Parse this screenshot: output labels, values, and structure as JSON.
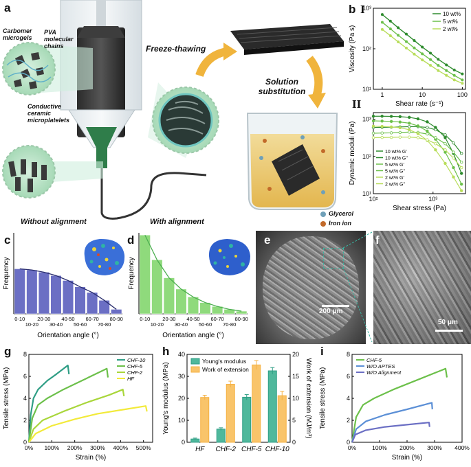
{
  "figure": {
    "panel_labels": {
      "a": "a",
      "b": "b",
      "b1": "I",
      "b2": "II",
      "c": "c",
      "d": "d",
      "e": "e",
      "f": "f",
      "g": "g",
      "h": "h",
      "i": "i"
    },
    "schematic": {
      "carbomer": "Carbomer microgels",
      "pva": "PVA molecular chains",
      "ceramic": "Conductive ceramic microplatelets",
      "freeze": "Freeze-thawing",
      "solution_line1": "Solution",
      "solution_line2": "substitution",
      "glycerol": "Glycerol",
      "iron": "Iron ion"
    },
    "titles": {
      "c": "Without alignment",
      "d": "With alignment"
    },
    "sem": {
      "e_scale": "200 μm",
      "f_scale": "50 μm"
    },
    "colors": {
      "dark_green": "#2e8b2e",
      "mid_green": "#6cc04a",
      "light_green": "#b8dd5a",
      "purple": "#6b6fc4",
      "teal": "#2f9e85",
      "orange": "#f5b142",
      "yellow": "#f2ea3a",
      "blue": "#5b8fd6"
    }
  },
  "chart_data": [
    {
      "id": "b1",
      "type": "line",
      "title": "",
      "xlabel": "Shear rate (s⁻¹)",
      "ylabel": "Viscosity (Pa s)",
      "xscale": "log",
      "yscale": "log",
      "xlim": [
        0.6,
        120
      ],
      "ylim": [
        10,
        1000
      ],
      "xticks": [
        "1",
        "10",
        "100"
      ],
      "yticks": [
        "10¹",
        "10²",
        "10³"
      ],
      "legend": "top-right",
      "x": [
        1,
        1.6,
        2.5,
        4,
        6.3,
        10,
        16,
        25,
        40,
        63,
        100
      ],
      "series": [
        {
          "name": "10 wt%",
          "values": [
            700,
            480,
            330,
            230,
            160,
            110,
            78,
            55,
            40,
            30,
            24
          ]
        },
        {
          "name": "5 wt%",
          "values": [
            450,
            310,
            215,
            150,
            105,
            75,
            54,
            39,
            29,
            22,
            17
          ]
        },
        {
          "name": "2 wt%",
          "values": [
            300,
            210,
            148,
            104,
            74,
            53,
            39,
            29,
            22,
            17,
            14
          ]
        }
      ]
    },
    {
      "id": "b2",
      "type": "line",
      "title": "",
      "xlabel": "Shear stress (Pa)",
      "ylabel": "Dynamic moduli (Pa)",
      "xscale": "log",
      "yscale": "log",
      "xlim": [
        100,
        3500
      ],
      "ylim": [
        10,
        1500
      ],
      "xticks": [
        "10²",
        "10³"
      ],
      "yticks": [
        "10¹",
        "10²",
        "10³"
      ],
      "legend": "bottom-left",
      "x": [
        100,
        140,
        200,
        280,
        400,
        560,
        800,
        1100,
        1600,
        2200,
        3000
      ],
      "series": [
        {
          "name": "10 wt% G'",
          "values": [
            1200,
            1200,
            1190,
            1170,
            1120,
            1020,
            850,
            600,
            320,
            120,
            35
          ]
        },
        {
          "name": "10 wt% G\"",
          "values": [
            600,
            605,
            610,
            620,
            630,
            630,
            600,
            520,
            380,
            230,
            120
          ]
        },
        {
          "name": "5 wt% G'",
          "values": [
            900,
            890,
            870,
            840,
            780,
            660,
            480,
            290,
            130,
            50,
            18
          ]
        },
        {
          "name": "5 wt% G\"",
          "values": [
            420,
            425,
            430,
            440,
            450,
            440,
            400,
            320,
            220,
            130,
            70
          ]
        },
        {
          "name": "2 wt% G'",
          "values": [
            650,
            640,
            620,
            590,
            520,
            410,
            270,
            150,
            65,
            28,
            12
          ]
        },
        {
          "name": "2 wt% G\"",
          "values": [
            320,
            322,
            325,
            330,
            330,
            320,
            280,
            220,
            150,
            90,
            50
          ]
        }
      ]
    },
    {
      "id": "c",
      "type": "bar",
      "title": "Without alignment",
      "xlabel": "Orientation angle (°)",
      "ylabel": "Frequency",
      "categories": [
        "0-10",
        "10-20",
        "20-30",
        "30-40",
        "40-50",
        "50-60",
        "60-70",
        "70-80",
        "80-90"
      ],
      "values": [
        0.2,
        0.195,
        0.185,
        0.17,
        0.148,
        0.12,
        0.095,
        0.06,
        0.02
      ],
      "ylim": [
        0,
        0.36
      ]
    },
    {
      "id": "d",
      "type": "bar",
      "title": "With alignment",
      "xlabel": "Orientation angle (°)",
      "ylabel": "Frequency",
      "categories": [
        "0-10",
        "10-20",
        "20-30",
        "30-40",
        "40-50",
        "50-60",
        "60-70",
        "70-80",
        "80-90"
      ],
      "values": [
        0.35,
        0.24,
        0.16,
        0.11,
        0.075,
        0.05,
        0.033,
        0.02,
        0.012
      ],
      "ylim": [
        0,
        0.36
      ]
    },
    {
      "id": "g",
      "type": "line",
      "title": "",
      "xlabel": "Strain (%)",
      "ylabel": "Tensile stress (MPa)",
      "xlim": [
        0,
        540
      ],
      "ylim": [
        0,
        8
      ],
      "xticks": [
        "0%",
        "100%",
        "200%",
        "300%",
        "400%",
        "500%"
      ],
      "yticks": [
        "0",
        "2",
        "4",
        "6",
        "8"
      ],
      "legend": "top-right",
      "series": [
        {
          "name": "CHF-10",
          "points": [
            [
              0,
              0
            ],
            [
              8,
              2.5
            ],
            [
              20,
              4.0
            ],
            [
              40,
              4.8
            ],
            [
              80,
              5.6
            ],
            [
              120,
              6.2
            ],
            [
              170,
              7.0
            ],
            [
              175,
              6.2
            ]
          ]
        },
        {
          "name": "CHF-5",
          "points": [
            [
              0,
              0
            ],
            [
              15,
              2.2
            ],
            [
              40,
              3.4
            ],
            [
              80,
              4.0
            ],
            [
              150,
              4.8
            ],
            [
              250,
              5.8
            ],
            [
              340,
              6.7
            ],
            [
              345,
              5.9
            ]
          ]
        },
        {
          "name": "CHF-2",
          "points": [
            [
              0,
              0
            ],
            [
              20,
              1.2
            ],
            [
              60,
              2.0
            ],
            [
              150,
              2.8
            ],
            [
              250,
              3.6
            ],
            [
              350,
              4.3
            ],
            [
              410,
              4.8
            ],
            [
              415,
              4.2
            ]
          ]
        },
        {
          "name": "HF",
          "points": [
            [
              0,
              0
            ],
            [
              30,
              0.8
            ],
            [
              100,
              1.5
            ],
            [
              200,
              2.1
            ],
            [
              300,
              2.6
            ],
            [
              420,
              3.0
            ],
            [
              510,
              3.3
            ],
            [
              515,
              2.8
            ]
          ]
        }
      ]
    },
    {
      "id": "h",
      "type": "bar",
      "title": "",
      "xlabel": "",
      "ylabel": "Young's modulus (MPa)",
      "ylabel2": "Work of extension (MJ/m³)",
      "categories": [
        "HF",
        "CHF-2",
        "CHF-5",
        "CHF-10"
      ],
      "legend": "top-left",
      "ylim": [
        0,
        40
      ],
      "ylim2": [
        0,
        20
      ],
      "yticks": [
        "0",
        "10",
        "20",
        "30",
        "40"
      ],
      "yticks2": [
        "0",
        "5",
        "10",
        "15",
        "20"
      ],
      "series": [
        {
          "name": "Young's modulus",
          "values": [
            1.5,
            6,
            20.5,
            32.5
          ],
          "errors": [
            0.4,
            0.6,
            1.2,
            1.5
          ]
        },
        {
          "name": "Work of extension",
          "values": [
            10.2,
            13.2,
            17.6,
            10.6
          ],
          "errors": [
            0.5,
            0.7,
            1.0,
            1.0
          ]
        }
      ]
    },
    {
      "id": "i",
      "type": "line",
      "title": "",
      "xlabel": "Strain (%)",
      "ylabel": "Tensile stress (MPa)",
      "xlim": [
        0,
        400
      ],
      "ylim": [
        0,
        8
      ],
      "xticks": [
        "0%",
        "100%",
        "200%",
        "300%",
        "400%"
      ],
      "yticks": [
        "0",
        "2",
        "4",
        "6",
        "8"
      ],
      "legend": "top-left",
      "series": [
        {
          "name": "CHF-5",
          "points": [
            [
              0,
              0
            ],
            [
              15,
              2.3
            ],
            [
              40,
              3.4
            ],
            [
              80,
              4.0
            ],
            [
              150,
              4.8
            ],
            [
              250,
              5.8
            ],
            [
              340,
              6.7
            ],
            [
              345,
              5.9
            ]
          ]
        },
        {
          "name": "W/O APTES",
          "points": [
            [
              0,
              0
            ],
            [
              15,
              1.2
            ],
            [
              50,
              1.9
            ],
            [
              120,
              2.5
            ],
            [
              200,
              3.0
            ],
            [
              290,
              3.6
            ],
            [
              292,
              3.0
            ]
          ]
        },
        {
          "name": "W/O Alignment",
          "points": [
            [
              0,
              0
            ],
            [
              12,
              0.7
            ],
            [
              50,
              1.1
            ],
            [
              120,
              1.4
            ],
            [
              200,
              1.6
            ],
            [
              280,
              1.8
            ],
            [
              282,
              1.4
            ]
          ]
        }
      ]
    }
  ]
}
